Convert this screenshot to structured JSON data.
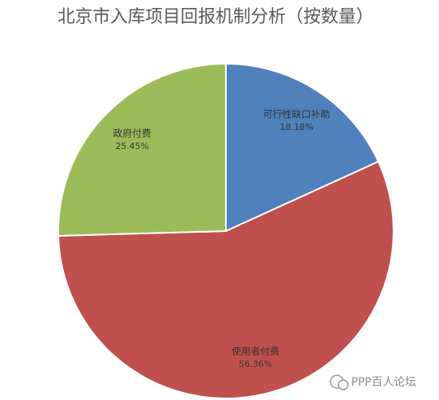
{
  "chart_data": {
    "type": "pie",
    "title": "北京市入库项目回报机制分析（按数量）",
    "categories": [
      "可行性缺口补助",
      "使用者付费",
      "政府付费"
    ],
    "values": [
      18.18,
      56.36,
      25.45
    ],
    "value_labels": [
      "18.18%",
      "56.36%",
      "25.45%"
    ],
    "colors": [
      "#4f81bd",
      "#c0504d",
      "#9bbb59"
    ],
    "watermark": "PPP百人论坛"
  }
}
